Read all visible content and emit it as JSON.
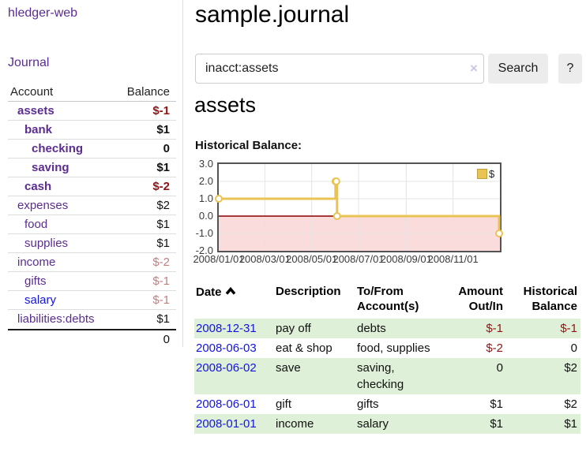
{
  "colors": {
    "link_purple": "#5b2d91",
    "link_blue": "#1414e0",
    "negative_strong": "#8f1414",
    "negative_muted": "#c08080",
    "row_green": "#dff0d8",
    "button_gray": "#ececec"
  },
  "sidebar": {
    "app_title": "hledger-web",
    "journal_link": "Journal",
    "account_header": "Account",
    "balance_header": "Balance",
    "accounts": [
      {
        "name": "assets",
        "balance": "$-1"
      },
      {
        "name": "bank",
        "balance": "$1"
      },
      {
        "name": "checking",
        "balance": "0"
      },
      {
        "name": "saving",
        "balance": "$1"
      },
      {
        "name": "cash",
        "balance": "$-2"
      },
      {
        "name": "expenses",
        "balance": "$2"
      },
      {
        "name": "food",
        "balance": "$1"
      },
      {
        "name": "supplies",
        "balance": "$1"
      },
      {
        "name": "income",
        "balance": "$-2"
      },
      {
        "name": "gifts",
        "balance": "$-1"
      },
      {
        "name": "salary",
        "balance": "$-1"
      },
      {
        "name": "liabilities:debts",
        "balance": "$1"
      }
    ],
    "total": "0"
  },
  "main": {
    "title": "sample.journal",
    "search": {
      "value": "inacct:assets",
      "clear_icon": "×",
      "search_button": "Search",
      "help_button": "?"
    },
    "account_heading": "assets",
    "chart_caption": "Historical Balance:"
  },
  "register": {
    "headers": {
      "date": "Date",
      "sort_icon": "chevron-up",
      "description": "Description",
      "account_line1": "To/From",
      "account_line2": "Account(s)",
      "amount_line1": "Amount",
      "amount_line2": "Out/In",
      "balance_line1": "Historical",
      "balance_line2": "Balance"
    },
    "rows": [
      {
        "date": "2008-12-31",
        "description": "pay off",
        "accounts": "debts",
        "amount": "$-1",
        "balance": "$-1"
      },
      {
        "date": "2008-06-03",
        "description": "eat & shop",
        "accounts": "food, supplies",
        "amount": "$-2",
        "balance": "0"
      },
      {
        "date": "2008-06-02",
        "description": "save",
        "accounts": "saving, checking",
        "amount": "0",
        "balance": "$2"
      },
      {
        "date": "2008-06-01",
        "description": "gift",
        "accounts": "gifts",
        "amount": "$1",
        "balance": "$2"
      },
      {
        "date": "2008-01-01",
        "description": "income",
        "accounts": "salary",
        "amount": "$1",
        "balance": "$1"
      }
    ]
  },
  "chart_data": {
    "type": "line",
    "title": "Historical Balance",
    "step": true,
    "legend": "$",
    "legend_position": "top-right",
    "grid": true,
    "x_start": "2008/01/01",
    "x_days_span": 366,
    "ylim": [
      -2,
      3
    ],
    "yticks": [
      "3.0",
      "2.0",
      "1.0",
      "0.0",
      "-1.0",
      "-2.0"
    ],
    "xticks": [
      "2008/01/01",
      "2008/03/01",
      "2008/05/01",
      "2008/07/01",
      "2008/09/01",
      "2008/11/01"
    ],
    "series": [
      {
        "name": "$",
        "points": [
          [
            "2008/01/01",
            1
          ],
          [
            "2008/06/01",
            2
          ],
          [
            "2008/06/02",
            2
          ],
          [
            "2008/06/03",
            0
          ],
          [
            "2008/12/31",
            -1
          ]
        ]
      }
    ],
    "line_color": "#e9c454",
    "point_fill": "#ffffff",
    "grid_color": "#e4e4e4",
    "zero_line_color": "#8b0000",
    "negative_region_color": "#fadcdc"
  }
}
